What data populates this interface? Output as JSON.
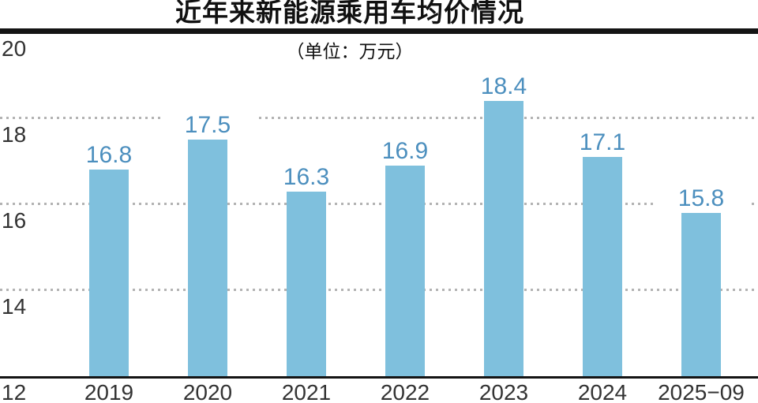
{
  "chart_data": {
    "type": "bar",
    "title": "近年来新能源乘用车均价情况",
    "unit_label": "（单位：万元）",
    "categories": [
      "2019",
      "2020",
      "2021",
      "2022",
      "2023",
      "2024",
      "2025−09"
    ],
    "values": [
      16.8,
      17.5,
      16.3,
      16.9,
      18.4,
      17.1,
      15.8
    ],
    "xlabel": "",
    "ylabel": "",
    "ylim": [
      12,
      20
    ],
    "yticks": [
      20,
      18,
      16,
      14,
      12
    ],
    "grid": "horizontal-dotted",
    "legend": "none",
    "colors": {
      "bar": "#7fc0dd",
      "value_label": "#4c8fbe",
      "axis_text": "#333333",
      "gridline": "#b3b3b3",
      "rule": "#141414"
    }
  }
}
